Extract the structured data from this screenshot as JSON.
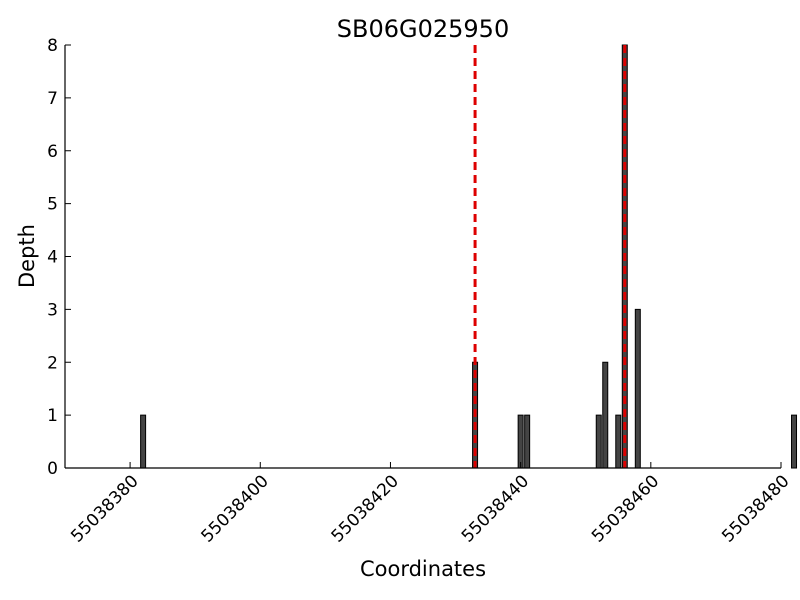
{
  "chart_data": {
    "type": "bar",
    "title": "SB06G025950",
    "xlabel": "Coordinates",
    "ylabel": "Depth",
    "xlim": [
      55038370,
      55038480
    ],
    "ylim": [
      0,
      8
    ],
    "x_ticks": [
      55038380,
      55038400,
      55038420,
      55038440,
      55038460,
      55038480
    ],
    "y_ticks": [
      0,
      1,
      2,
      3,
      4,
      5,
      6,
      7,
      8
    ],
    "bars": [
      {
        "x": 55038382,
        "value": 1
      },
      {
        "x": 55038433,
        "value": 2
      },
      {
        "x": 55038440,
        "value": 1
      },
      {
        "x": 55038441,
        "value": 1
      },
      {
        "x": 55038452,
        "value": 1
      },
      {
        "x": 55038453,
        "value": 2
      },
      {
        "x": 55038455,
        "value": 1
      },
      {
        "x": 55038456,
        "value": 8
      },
      {
        "x": 55038458,
        "value": 3
      },
      {
        "x": 55038482,
        "value": 1
      }
    ],
    "markers": [
      55038433,
      55038456
    ],
    "bar_color": "#444444",
    "marker_color": "#dd0000",
    "grid": false
  }
}
